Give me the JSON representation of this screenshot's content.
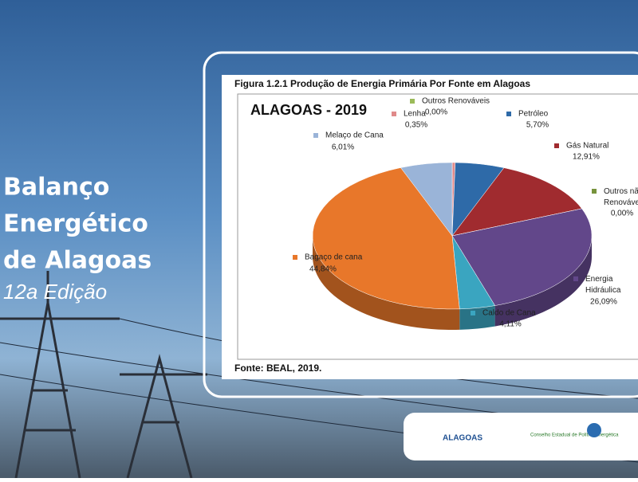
{
  "header": {
    "title_lines": [
      "Balanço",
      "Energético",
      "de Alagoas"
    ],
    "edition": "12a Edição"
  },
  "chart_data": {
    "type": "pie",
    "title": "Figura 1.2.1 Produção de Energia Primária Por Fonte  em Alagoas",
    "chart_title": "ALAGOAS - 2019",
    "categories": [
      "Outros Renováveis",
      "Lenha",
      "Petróleo",
      "Gás Natural",
      "Outros não Renováveis",
      "Energia Hidráulica",
      "Caldo de Cana",
      "Bagaço de cana",
      "Melaço de Cana"
    ],
    "values": [
      0,
      0.35,
      5.7,
      12.91,
      0,
      26.09,
      4.11,
      44.84,
      6.01
    ],
    "value_labels": [
      "0,00%",
      "0,35%",
      "5,70%",
      "12,91%",
      "0,00%",
      "26,09%",
      "4,11%",
      "44,84%",
      "6,01%"
    ],
    "colors": [
      "#9bbb59",
      "#e08a8a",
      "#2e6aa8",
      "#a02b2f",
      "#77933c",
      "#62478a",
      "#3aa5c0",
      "#e8772a",
      "#9ab4d8"
    ],
    "source": "Fonte: BEAL, 2019."
  },
  "footer": {
    "logos": [
      "ALAGOAS",
      "Conselho Estadual de Política Energética"
    ]
  }
}
